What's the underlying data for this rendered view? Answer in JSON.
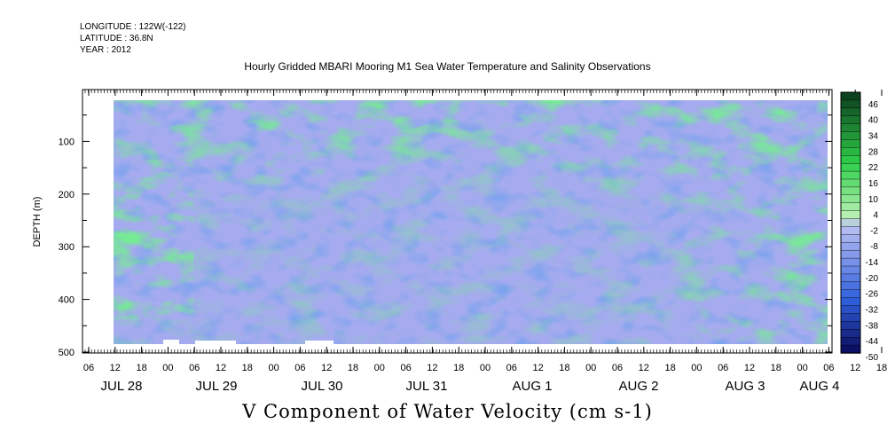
{
  "header": {
    "longitude": "LONGITUDE : 122W(-122)",
    "latitude": "LATITUDE : 36.8N",
    "year": "YEAR : 2012"
  },
  "chart_data": {
    "type": "heatmap",
    "title": "Hourly Gridded MBARI Mooring M1 Sea Water Temperature and Salinity Observations",
    "xlabel": "V Component of Water Velocity (cm s-1)",
    "ylabel": "DEPTH (m)",
    "y_ticks": [
      "100",
      "200",
      "300",
      "400",
      "500"
    ],
    "y_range": [
      10,
      500
    ],
    "x_hour_ticks": [
      "06",
      "12",
      "18",
      "00",
      "06",
      "12",
      "18",
      "00",
      "06",
      "12",
      "18",
      "00",
      "06",
      "12",
      "18",
      "00",
      "06",
      "12",
      "18",
      "00",
      "06",
      "12",
      "18",
      "00",
      "06",
      "12",
      "18",
      "00",
      "06",
      "12",
      "18",
      "00",
      "06"
    ],
    "x_day_labels": [
      "JUL 28",
      "JUL 29",
      "JUL 30",
      "JUL 31",
      "AUG  1",
      "AUG  2",
      "AUG  3",
      "AUG  4"
    ],
    "colorbar_labels": [
      "46",
      "40",
      "34",
      "28",
      "22",
      "16",
      "10",
      "4",
      "-2",
      "-8",
      "-14",
      "-20",
      "-26",
      "-32",
      "-38",
      "-44",
      "-50"
    ],
    "colorbar_range": [
      -50,
      49
    ],
    "colors": {
      "neg_dark": "#0a0a5a",
      "neg_mid": "#2f5fdc",
      "neg_light": "#b8bff2",
      "pos_light": "#b8f0b4",
      "pos_mid": "#2fd04a",
      "pos_dark": "#0b3a1c"
    }
  }
}
